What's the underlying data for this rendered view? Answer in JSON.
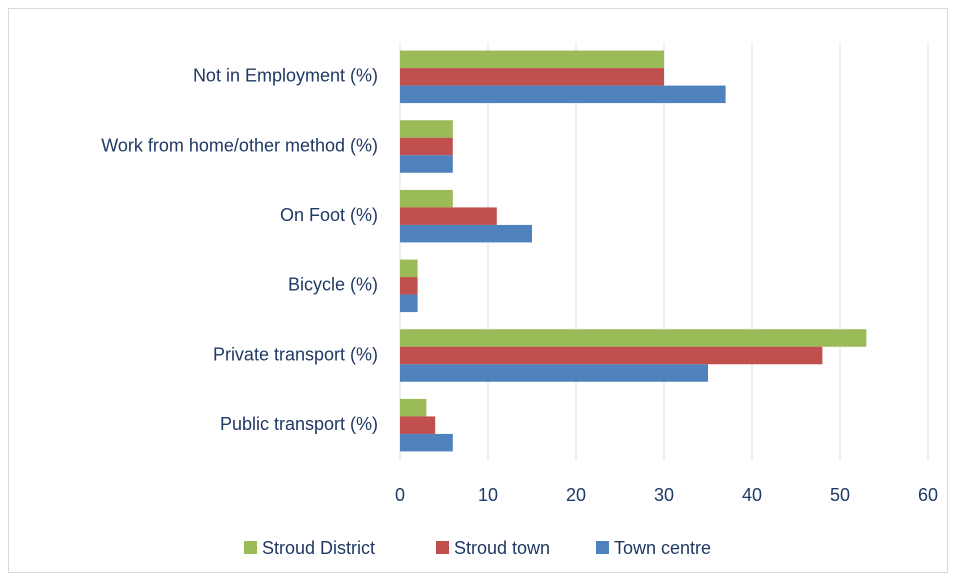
{
  "chart_data": {
    "type": "hbar",
    "categories": [
      "Not in Employment (%)",
      "Work from home/other method (%)",
      "On Foot (%)",
      "Bicycle (%)",
      "Private transport (%)",
      "Public transport (%)"
    ],
    "series": [
      {
        "name": "Stroud District",
        "color": "#9bbb59",
        "values": [
          30,
          6,
          6,
          2,
          53,
          3
        ]
      },
      {
        "name": "Stroud town",
        "color": "#c0504d",
        "values": [
          30,
          6,
          11,
          2,
          48,
          4
        ]
      },
      {
        "name": "Town centre",
        "color": "#4f81bd",
        "values": [
          37,
          6,
          15,
          2,
          35,
          6
        ]
      }
    ],
    "xlim": [
      0,
      60
    ],
    "xticks": [
      0,
      10,
      20,
      30,
      40,
      50,
      60
    ],
    "grid": true,
    "legend": "bottom"
  }
}
